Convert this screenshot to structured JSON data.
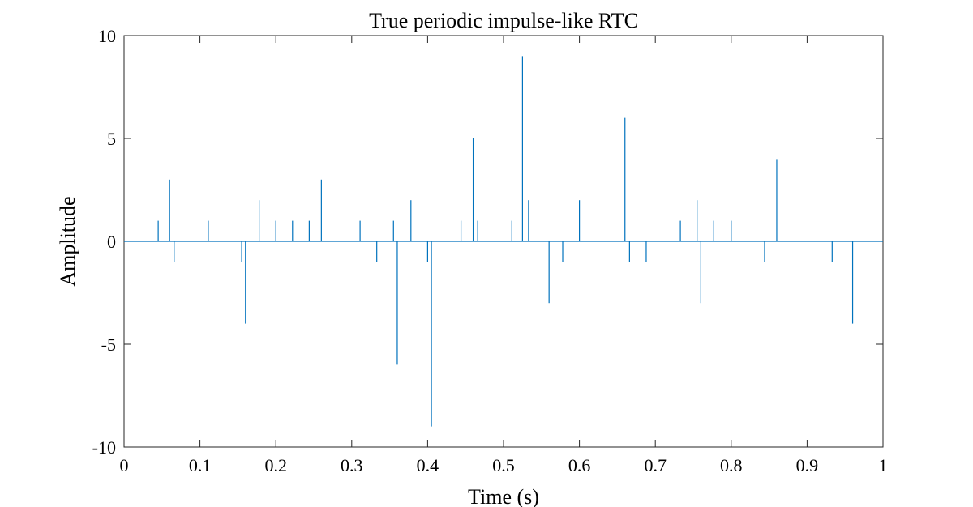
{
  "chart_data": {
    "type": "line",
    "title": "True periodic impulse-like RTC",
    "xlabel": "Time (s)",
    "ylabel": "Amplitude",
    "xlim": [
      0,
      1
    ],
    "ylim": [
      -10,
      10
    ],
    "xticks": [
      0,
      0.1,
      0.2,
      0.3,
      0.4,
      0.5,
      0.6,
      0.7,
      0.8,
      0.9,
      1
    ],
    "xtick_labels": [
      "0",
      "0.1",
      "0.2",
      "0.3",
      "0.4",
      "0.5",
      "0.6",
      "0.7",
      "0.8",
      "0.9",
      "1"
    ],
    "yticks": [
      -10,
      -5,
      0,
      5,
      10
    ],
    "ytick_labels": [
      "-10",
      "-5",
      "0",
      "5",
      "10"
    ],
    "grid": false,
    "line_color": "#0072BD",
    "series": [
      {
        "x": [
          0.045,
          0.06,
          0.066,
          0.111,
          0.155,
          0.16,
          0.178,
          0.2,
          0.222,
          0.244,
          0.26,
          0.311,
          0.333,
          0.355,
          0.36,
          0.378,
          0.4,
          0.405,
          0.444,
          0.46,
          0.466,
          0.511,
          0.525,
          0.533,
          0.56,
          0.578,
          0.6,
          0.66,
          0.666,
          0.688,
          0.733,
          0.755,
          0.76,
          0.777,
          0.8,
          0.844,
          0.86,
          0.933,
          0.96
        ],
        "y": [
          1,
          3,
          -1,
          1,
          -1,
          -4,
          2,
          1,
          1,
          1,
          3,
          1,
          -1,
          1,
          -6,
          2,
          -1,
          -9,
          1,
          5,
          1,
          1,
          9,
          2,
          -3,
          -1,
          2,
          6,
          -1,
          -1,
          1,
          2,
          -3,
          1,
          1,
          -1,
          4,
          -1,
          -4
        ]
      }
    ]
  }
}
